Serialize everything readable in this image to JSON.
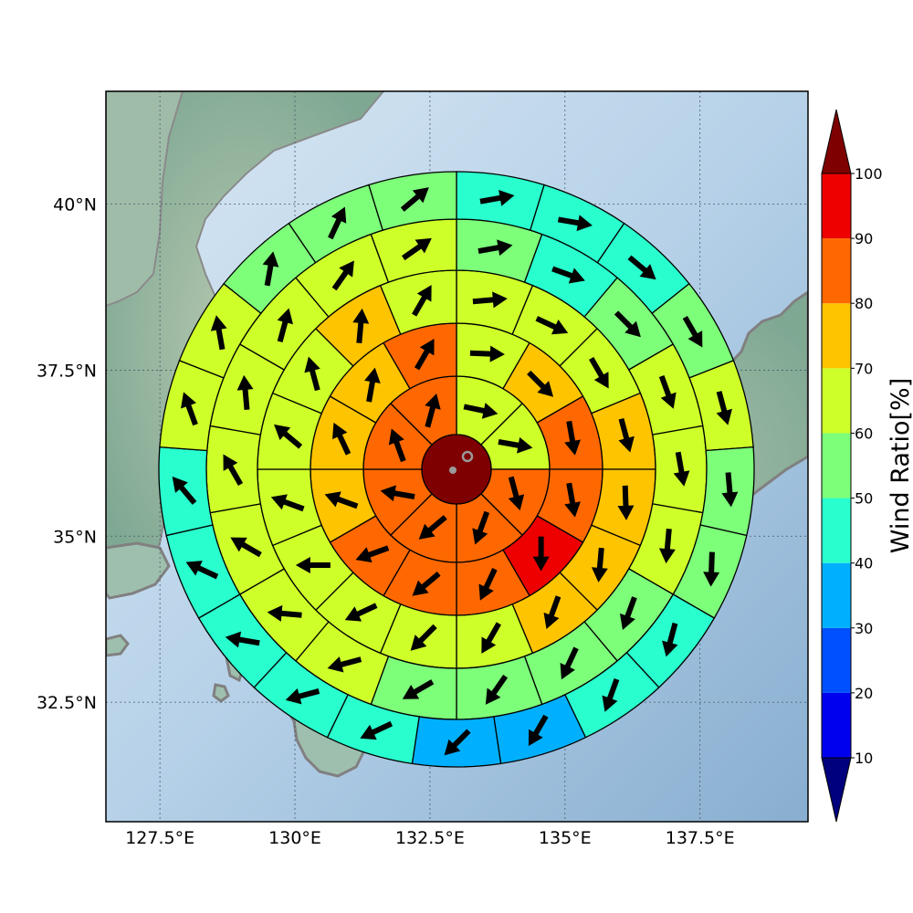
{
  "map": {
    "lon_ticks": [
      "127.5°E",
      "130°E",
      "132.5°E",
      "135°E",
      "137.5°E"
    ],
    "lat_ticks": [
      "40°N",
      "37.5°N",
      "35°N",
      "32.5°N"
    ],
    "extent": {
      "lon": [
        126.5,
        139.5
      ],
      "lat": [
        30.7,
        41.7
      ]
    },
    "colors": {
      "sea": "#a9c8e2",
      "land": "#94b7a4",
      "coast": "#808080",
      "grid": "#4a5a6a"
    }
  },
  "colorbar": {
    "title": "Wind Ratio[%]",
    "ticks": [
      "10",
      "20",
      "30",
      "40",
      "50",
      "60",
      "70",
      "80",
      "90",
      "100"
    ],
    "levels": [
      0,
      10,
      20,
      30,
      40,
      50,
      60,
      70,
      80,
      90,
      100
    ],
    "colors": [
      "#00007f",
      "#0000ee",
      "#0050ff",
      "#00b0ff",
      "#29ffce",
      "#7dff7a",
      "#ceff29",
      "#ffc400",
      "#ff6800",
      "#ee0000",
      "#7f0000"
    ]
  },
  "wind_ratio_rings": {
    "center_ratio": 100,
    "rings": [
      {
        "ring": 1,
        "sectors": [
          {
            "dir": "N",
            "ratio": 65,
            "wind_toward_deg": 102
          },
          {
            "dir": "NE",
            "ratio": 65,
            "wind_toward_deg": 100
          },
          {
            "dir": "E",
            "ratio": 85,
            "wind_toward_deg": 165
          },
          {
            "dir": "SE",
            "ratio": 85,
            "wind_toward_deg": 200
          },
          {
            "dir": "S",
            "ratio": 85,
            "wind_toward_deg": 230
          },
          {
            "dir": "SW",
            "ratio": 85,
            "wind_toward_deg": 280
          },
          {
            "dir": "W",
            "ratio": 85,
            "wind_toward_deg": 340
          },
          {
            "dir": "NW",
            "ratio": 85,
            "wind_toward_deg": 15
          }
        ]
      },
      {
        "ring": 2,
        "sectors": [
          {
            "dir": "NNE",
            "ratio": 65,
            "wind_toward_deg": 92
          },
          {
            "dir": "NE",
            "ratio": 75,
            "wind_toward_deg": 135
          },
          {
            "dir": "ENE",
            "ratio": 85,
            "wind_toward_deg": 170
          },
          {
            "dir": "ESE",
            "ratio": 85,
            "wind_toward_deg": 170
          },
          {
            "dir": "SE",
            "ratio": 95,
            "wind_toward_deg": 180
          },
          {
            "dir": "SSE",
            "ratio": 85,
            "wind_toward_deg": 205
          },
          {
            "dir": "SSW",
            "ratio": 85,
            "wind_toward_deg": 230
          },
          {
            "dir": "SW",
            "ratio": 85,
            "wind_toward_deg": 250
          },
          {
            "dir": "WSW",
            "ratio": 75,
            "wind_toward_deg": 290
          },
          {
            "dir": "W",
            "ratio": 75,
            "wind_toward_deg": 335
          },
          {
            "dir": "WNW",
            "ratio": 75,
            "wind_toward_deg": 10
          },
          {
            "dir": "NNW",
            "ratio": 85,
            "wind_toward_deg": 30
          }
        ]
      },
      {
        "ring": 3,
        "sectors": [
          {
            "dir": "N1",
            "ratio": 65,
            "wind_toward_deg": 85
          },
          {
            "dir": "N2",
            "ratio": 65,
            "wind_toward_deg": 115
          },
          {
            "dir": "NE1",
            "ratio": 65,
            "wind_toward_deg": 150
          },
          {
            "dir": "NE2",
            "ratio": 75,
            "wind_toward_deg": 165
          },
          {
            "dir": "E1",
            "ratio": 75,
            "wind_toward_deg": 178
          },
          {
            "dir": "E2",
            "ratio": 75,
            "wind_toward_deg": 185
          },
          {
            "dir": "SE1",
            "ratio": 75,
            "wind_toward_deg": 200
          },
          {
            "dir": "SE2",
            "ratio": 65,
            "wind_toward_deg": 210
          },
          {
            "dir": "S1",
            "ratio": 65,
            "wind_toward_deg": 225
          },
          {
            "dir": "S2",
            "ratio": 65,
            "wind_toward_deg": 245
          },
          {
            "dir": "SW1",
            "ratio": 65,
            "wind_toward_deg": 270
          },
          {
            "dir": "SW2",
            "ratio": 65,
            "wind_toward_deg": 290
          },
          {
            "dir": "W1",
            "ratio": 65,
            "wind_toward_deg": 310
          },
          {
            "dir": "W2",
            "ratio": 65,
            "wind_toward_deg": 345
          },
          {
            "dir": "NW1",
            "ratio": 75,
            "wind_toward_deg": 5
          },
          {
            "dir": "NW2",
            "ratio": 65,
            "wind_toward_deg": 30
          }
        ]
      },
      {
        "ring": 4,
        "sectors": [
          {
            "dir": "s1",
            "ratio": 55,
            "wind_toward_deg": 80
          },
          {
            "dir": "s2",
            "ratio": 45,
            "wind_toward_deg": 110
          },
          {
            "dir": "s3",
            "ratio": 55,
            "wind_toward_deg": 135
          },
          {
            "dir": "s4",
            "ratio": 65,
            "wind_toward_deg": 160
          },
          {
            "dir": "s5",
            "ratio": 65,
            "wind_toward_deg": 170
          },
          {
            "dir": "s6",
            "ratio": 65,
            "wind_toward_deg": 185
          },
          {
            "dir": "s7",
            "ratio": 55,
            "wind_toward_deg": 200
          },
          {
            "dir": "s8",
            "ratio": 55,
            "wind_toward_deg": 205
          },
          {
            "dir": "s9",
            "ratio": 55,
            "wind_toward_deg": 215
          },
          {
            "dir": "s10",
            "ratio": 55,
            "wind_toward_deg": 240
          },
          {
            "dir": "s11",
            "ratio": 65,
            "wind_toward_deg": 255
          },
          {
            "dir": "s12",
            "ratio": 65,
            "wind_toward_deg": 275
          },
          {
            "dir": "s13",
            "ratio": 65,
            "wind_toward_deg": 300
          },
          {
            "dir": "s14",
            "ratio": 65,
            "wind_toward_deg": 330
          },
          {
            "dir": "s15",
            "ratio": 65,
            "wind_toward_deg": 355
          },
          {
            "dir": "s16",
            "ratio": 65,
            "wind_toward_deg": 15
          },
          {
            "dir": "s17",
            "ratio": 65,
            "wind_toward_deg": 35
          },
          {
            "dir": "s18",
            "ratio": 65,
            "wind_toward_deg": 55
          }
        ]
      },
      {
        "ring": 5,
        "sectors": [
          {
            "dir": "t1",
            "ratio": 45,
            "wind_toward_deg": 80
          },
          {
            "dir": "t2",
            "ratio": 45,
            "wind_toward_deg": 100
          },
          {
            "dir": "t3",
            "ratio": 45,
            "wind_toward_deg": 130
          },
          {
            "dir": "t4",
            "ratio": 55,
            "wind_toward_deg": 150
          },
          {
            "dir": "t5",
            "ratio": 65,
            "wind_toward_deg": 165
          },
          {
            "dir": "t6",
            "ratio": 55,
            "wind_toward_deg": 175
          },
          {
            "dir": "t7",
            "ratio": 55,
            "wind_toward_deg": 182
          },
          {
            "dir": "t8",
            "ratio": 45,
            "wind_toward_deg": 195
          },
          {
            "dir": "t9",
            "ratio": 45,
            "wind_toward_deg": 200
          },
          {
            "dir": "t10",
            "ratio": 35,
            "wind_toward_deg": 210
          },
          {
            "dir": "t11",
            "ratio": 35,
            "wind_toward_deg": 225
          },
          {
            "dir": "t12",
            "ratio": 45,
            "wind_toward_deg": 245
          },
          {
            "dir": "t13",
            "ratio": 45,
            "wind_toward_deg": 255
          },
          {
            "dir": "t14",
            "ratio": 45,
            "wind_toward_deg": 280
          },
          {
            "dir": "t15",
            "ratio": 45,
            "wind_toward_deg": 295
          },
          {
            "dir": "t16",
            "ratio": 45,
            "wind_toward_deg": 320
          },
          {
            "dir": "t17",
            "ratio": 65,
            "wind_toward_deg": 340
          },
          {
            "dir": "t18",
            "ratio": 65,
            "wind_toward_deg": 350
          },
          {
            "dir": "t19",
            "ratio": 55,
            "wind_toward_deg": 10
          },
          {
            "dir": "t20",
            "ratio": 55,
            "wind_toward_deg": 25
          },
          {
            "dir": "t21",
            "ratio": 55,
            "wind_toward_deg": 50
          }
        ]
      }
    ]
  }
}
